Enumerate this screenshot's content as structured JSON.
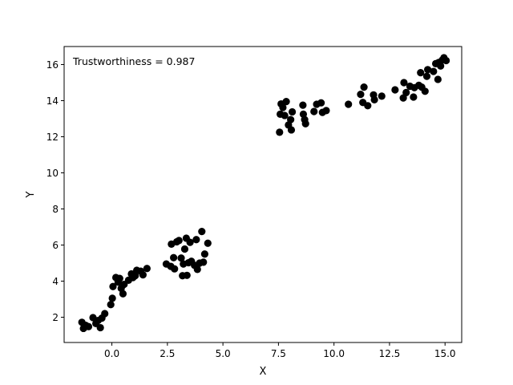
{
  "chart_data": {
    "type": "scatter",
    "xlabel": "X",
    "ylabel": "Y",
    "annotation": "Trustworthiness = 0.987",
    "xlim": [
      -2.15,
      15.75
    ],
    "ylim": [
      0.6,
      17.0
    ],
    "xticks": [
      0.0,
      2.5,
      5.0,
      7.5,
      10.0,
      12.5,
      15.0
    ],
    "xtick_labels": [
      "0.0",
      "2.5",
      "5.0",
      "7.5",
      "10.0",
      "12.5",
      "15.0"
    ],
    "yticks": [
      2,
      4,
      6,
      8,
      10,
      12,
      14,
      16
    ],
    "ytick_labels": [
      "2",
      "4",
      "6",
      "8",
      "10",
      "12",
      "14",
      "16"
    ],
    "grid": false,
    "marker_color": "#000000",
    "points": [
      [
        -1.35,
        1.72
      ],
      [
        -1.28,
        1.38
      ],
      [
        -1.18,
        1.55
      ],
      [
        -1.05,
        1.48
      ],
      [
        -0.85,
        1.98
      ],
      [
        -0.72,
        1.65
      ],
      [
        -0.62,
        1.82
      ],
      [
        -0.52,
        1.42
      ],
      [
        -0.45,
        1.95
      ],
      [
        -0.32,
        2.2
      ],
      [
        -0.05,
        2.7
      ],
      [
        0.02,
        3.05
      ],
      [
        0.05,
        3.7
      ],
      [
        0.18,
        4.2
      ],
      [
        0.28,
        3.95
      ],
      [
        0.35,
        4.15
      ],
      [
        0.42,
        3.6
      ],
      [
        0.5,
        3.3
      ],
      [
        0.55,
        3.82
      ],
      [
        0.75,
        4.05
      ],
      [
        0.88,
        4.4
      ],
      [
        0.95,
        4.2
      ],
      [
        1.05,
        4.3
      ],
      [
        1.12,
        4.6
      ],
      [
        1.3,
        4.55
      ],
      [
        1.4,
        4.35
      ],
      [
        1.58,
        4.7
      ],
      [
        2.45,
        4.95
      ],
      [
        2.65,
        4.82
      ],
      [
        2.68,
        6.05
      ],
      [
        2.78,
        5.3
      ],
      [
        2.82,
        4.68
      ],
      [
        2.92,
        6.18
      ],
      [
        3.02,
        6.25
      ],
      [
        3.12,
        5.28
      ],
      [
        3.18,
        4.3
      ],
      [
        3.22,
        4.95
      ],
      [
        3.28,
        5.78
      ],
      [
        3.35,
        6.38
      ],
      [
        3.38,
        4.32
      ],
      [
        3.45,
        5.02
      ],
      [
        3.52,
        6.15
      ],
      [
        3.58,
        5.1
      ],
      [
        3.72,
        4.88
      ],
      [
        3.8,
        6.3
      ],
      [
        3.85,
        4.65
      ],
      [
        3.95,
        5.0
      ],
      [
        4.05,
        6.75
      ],
      [
        4.12,
        5.05
      ],
      [
        4.18,
        5.5
      ],
      [
        4.32,
        6.1
      ],
      [
        7.55,
        12.25
      ],
      [
        7.58,
        13.25
      ],
      [
        7.62,
        13.82
      ],
      [
        7.7,
        13.62
      ],
      [
        7.78,
        13.18
      ],
      [
        7.85,
        13.95
      ],
      [
        7.95,
        12.65
      ],
      [
        8.05,
        12.95
      ],
      [
        8.08,
        12.38
      ],
      [
        8.12,
        13.38
      ],
      [
        8.6,
        13.75
      ],
      [
        8.62,
        13.25
      ],
      [
        8.68,
        12.95
      ],
      [
        8.72,
        12.72
      ],
      [
        9.1,
        13.4
      ],
      [
        9.22,
        13.8
      ],
      [
        9.42,
        13.88
      ],
      [
        9.48,
        13.35
      ],
      [
        9.65,
        13.45
      ],
      [
        10.65,
        13.8
      ],
      [
        11.2,
        14.35
      ],
      [
        11.3,
        13.9
      ],
      [
        11.35,
        14.75
      ],
      [
        11.52,
        13.72
      ],
      [
        11.78,
        14.32
      ],
      [
        11.82,
        14.05
      ],
      [
        12.15,
        14.25
      ],
      [
        12.75,
        14.6
      ],
      [
        13.12,
        14.15
      ],
      [
        13.15,
        15.0
      ],
      [
        13.25,
        14.45
      ],
      [
        13.42,
        14.8
      ],
      [
        13.58,
        14.2
      ],
      [
        13.62,
        14.72
      ],
      [
        13.82,
        14.85
      ],
      [
        13.9,
        15.55
      ],
      [
        13.95,
        14.75
      ],
      [
        14.1,
        14.52
      ],
      [
        14.18,
        15.35
      ],
      [
        14.22,
        15.72
      ],
      [
        14.48,
        15.62
      ],
      [
        14.58,
        16.05
      ],
      [
        14.68,
        15.18
      ],
      [
        14.72,
        16.12
      ],
      [
        14.8,
        15.92
      ],
      [
        14.88,
        16.25
      ],
      [
        14.95,
        16.38
      ],
      [
        15.05,
        16.22
      ]
    ]
  }
}
